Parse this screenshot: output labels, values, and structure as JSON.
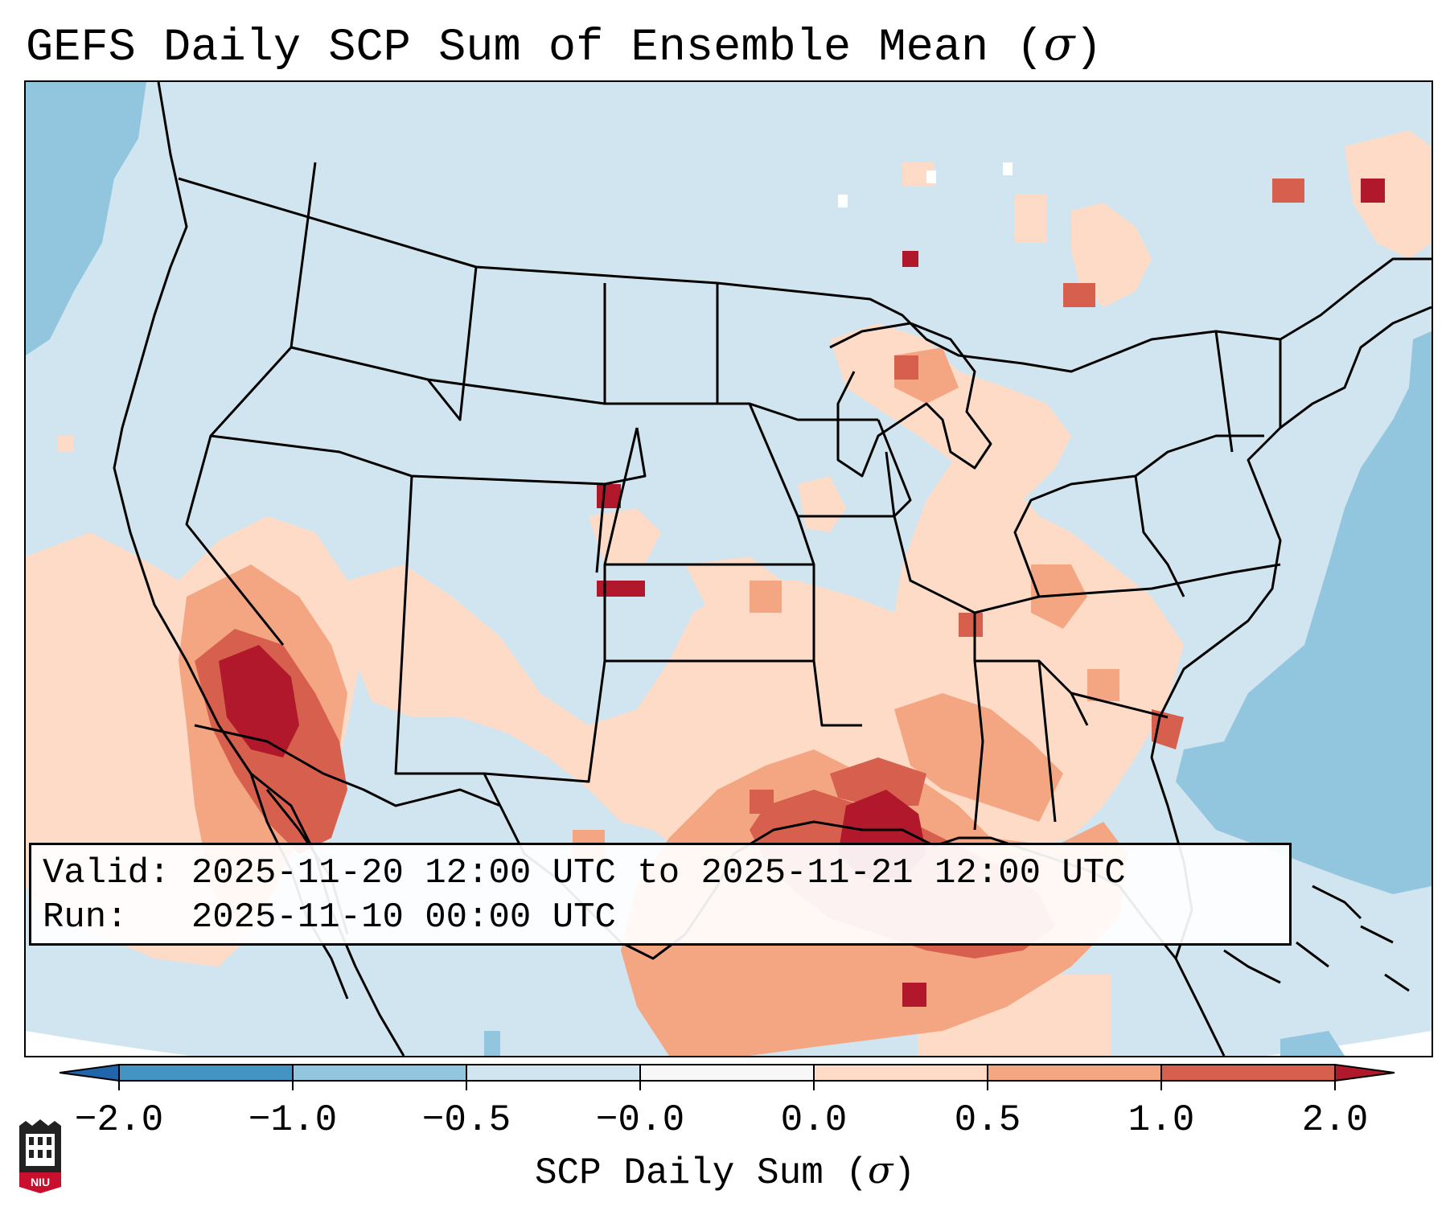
{
  "title": {
    "text": "GEFS Daily SCP Sum of Ensemble Mean (",
    "symbol": "σ",
    "close": ")"
  },
  "info": {
    "valid_line": "Valid: 2025-11-20 12:00 UTC to 2025-11-21 12:00 UTC",
    "run_line": "Run:   2025-11-10 00:00 UTC"
  },
  "colorbar": {
    "label_text": "SCP Daily Sum (",
    "label_symbol": "σ",
    "label_close": ")",
    "ticks": [
      "−2.0",
      "−1.0",
      "−0.5",
      "−0.0",
      "0.0",
      "0.5",
      "1.0",
      "2.0"
    ],
    "bins": [
      {
        "range": "< −2.0",
        "color": "#2166ac"
      },
      {
        "range": "−2.0 to −1.0",
        "color": "#4393c3"
      },
      {
        "range": "−1.0 to −0.5",
        "color": "#92c5de"
      },
      {
        "range": "−0.5 to −0.0",
        "color": "#d1e5f0"
      },
      {
        "range": "−0.0 to 0.0",
        "color": "#f7f7f7"
      },
      {
        "range": "0.0 to 0.5",
        "color": "#fddbc7"
      },
      {
        "range": "0.5 to 1.0",
        "color": "#f4a582"
      },
      {
        "range": "1.0 to 2.0",
        "color": "#d6604d"
      },
      {
        "range": "> 2.0",
        "color": "#b2182b"
      }
    ]
  },
  "map_fields": [
    {
      "region": "base",
      "level": "-0.5 to -0.0"
    },
    {
      "region": "Pacific northwest offshore",
      "level": "-1.0 to -0.5"
    },
    {
      "region": "Atlantic offshore",
      "level": "-1.0 to -0.5"
    },
    {
      "region": "southwest deserts",
      "level": "0.0 to 2.0+"
    },
    {
      "region": "Arizona / southern Nevada",
      "level": "> 2.0"
    },
    {
      "region": "southern Texas / lower Mississippi",
      "level": "0.0 to 1.0"
    },
    {
      "region": "Louisiana",
      "level": "> 2.0"
    },
    {
      "region": "Gulf of Mexico",
      "level": "0.5 to 2.0"
    },
    {
      "region": "Southeast",
      "level": "0.0 to 1.0"
    },
    {
      "region": "Great Lakes / Ohio Valley",
      "level": "0.0 to 1.0"
    },
    {
      "region": "Quebec",
      "level": "0.0 to 2.0+"
    }
  ],
  "logo": {
    "text": "NIU"
  }
}
